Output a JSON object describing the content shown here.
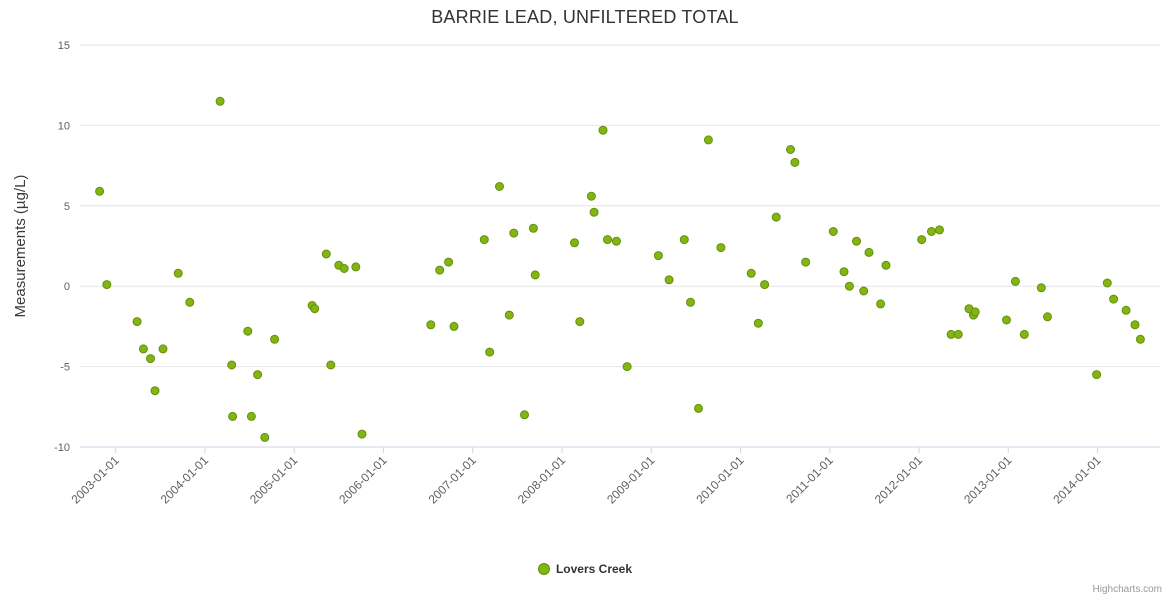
{
  "page": {
    "credits": "Highcharts.com"
  },
  "chart_data": {
    "type": "scatter",
    "title": "BARRIE LEAD, UNFILTERED TOTAL",
    "xlabel": "",
    "ylabel": "Measurements (µg/L)",
    "ylim": [
      -10,
      15
    ],
    "xlim": [
      2002.6,
      2014.7
    ],
    "grid": true,
    "legend_position": "bottom-center",
    "y_ticks": [
      15,
      10,
      5,
      0,
      -5,
      -10
    ],
    "x_ticks": [
      {
        "value": 2003,
        "label": "2003-01-01"
      },
      {
        "value": 2004,
        "label": "2004-01-01"
      },
      {
        "value": 2005,
        "label": "2005-01-01"
      },
      {
        "value": 2006,
        "label": "2006-01-01"
      },
      {
        "value": 2007,
        "label": "2007-01-01"
      },
      {
        "value": 2008,
        "label": "2008-01-01"
      },
      {
        "value": 2009,
        "label": "2009-01-01"
      },
      {
        "value": 2010,
        "label": "2010-01-01"
      },
      {
        "value": 2011,
        "label": "2011-01-01"
      },
      {
        "value": 2012,
        "label": "2012-01-01"
      },
      {
        "value": 2013,
        "label": "2013-01-01"
      },
      {
        "value": 2014,
        "label": "2014-01-01"
      }
    ],
    "colors": {
      "marker_fill": "#82b513",
      "marker_stroke": "#64900a",
      "grid": "#e6e6e6",
      "axis_line": "#ccd6eb",
      "tick": "#ccd6eb",
      "label": "#606060",
      "title": "#333333",
      "legend_text": "#333333",
      "credits": "#999999"
    },
    "series": [
      {
        "name": "Lovers Creek",
        "points": [
          [
            2002.82,
            5.9
          ],
          [
            2002.9,
            0.1
          ],
          [
            2003.24,
            -2.2
          ],
          [
            2003.31,
            -3.9
          ],
          [
            2003.39,
            -4.5
          ],
          [
            2003.44,
            -6.5
          ],
          [
            2003.53,
            -3.9
          ],
          [
            2003.7,
            0.8
          ],
          [
            2003.83,
            -1.0
          ],
          [
            2004.17,
            11.5
          ],
          [
            2004.3,
            -4.9
          ],
          [
            2004.31,
            -8.1
          ],
          [
            2004.48,
            -2.8
          ],
          [
            2004.52,
            -8.1
          ],
          [
            2004.59,
            -5.5
          ],
          [
            2004.67,
            -9.4
          ],
          [
            2004.78,
            -3.3
          ],
          [
            2005.2,
            -1.2
          ],
          [
            2005.23,
            -1.4
          ],
          [
            2005.36,
            2.0
          ],
          [
            2005.41,
            -4.9
          ],
          [
            2005.5,
            1.3
          ],
          [
            2005.56,
            1.1
          ],
          [
            2005.69,
            1.2
          ],
          [
            2005.76,
            -9.2
          ],
          [
            2006.53,
            -2.4
          ],
          [
            2006.63,
            1.0
          ],
          [
            2006.73,
            1.5
          ],
          [
            2006.79,
            -2.5
          ],
          [
            2007.13,
            2.9
          ],
          [
            2007.19,
            -4.1
          ],
          [
            2007.3,
            6.2
          ],
          [
            2007.41,
            -1.8
          ],
          [
            2007.46,
            3.3
          ],
          [
            2007.58,
            -8.0
          ],
          [
            2007.68,
            3.6
          ],
          [
            2007.7,
            0.7
          ],
          [
            2008.14,
            2.7
          ],
          [
            2008.2,
            -2.2
          ],
          [
            2008.33,
            5.6
          ],
          [
            2008.36,
            4.6
          ],
          [
            2008.46,
            9.7
          ],
          [
            2008.51,
            2.9
          ],
          [
            2008.61,
            2.8
          ],
          [
            2008.73,
            -5.0
          ],
          [
            2009.08,
            1.9
          ],
          [
            2009.2,
            0.4
          ],
          [
            2009.37,
            2.9
          ],
          [
            2009.44,
            -1.0
          ],
          [
            2009.53,
            -7.6
          ],
          [
            2009.64,
            9.1
          ],
          [
            2009.78,
            2.4
          ],
          [
            2010.12,
            0.8
          ],
          [
            2010.2,
            -2.3
          ],
          [
            2010.27,
            0.1
          ],
          [
            2010.4,
            4.3
          ],
          [
            2010.56,
            8.5
          ],
          [
            2010.61,
            7.7
          ],
          [
            2010.73,
            1.5
          ],
          [
            2011.04,
            3.4
          ],
          [
            2011.16,
            0.9
          ],
          [
            2011.22,
            0.0
          ],
          [
            2011.3,
            2.8
          ],
          [
            2011.38,
            -0.3
          ],
          [
            2011.44,
            2.1
          ],
          [
            2011.57,
            -1.1
          ],
          [
            2011.63,
            1.3
          ],
          [
            2012.03,
            2.9
          ],
          [
            2012.14,
            3.4
          ],
          [
            2012.23,
            3.5
          ],
          [
            2012.36,
            -3.0
          ],
          [
            2012.44,
            -3.0
          ],
          [
            2012.56,
            -1.4
          ],
          [
            2012.61,
            -1.8
          ],
          [
            2012.63,
            -1.6
          ],
          [
            2012.98,
            -2.1
          ],
          [
            2013.08,
            0.3
          ],
          [
            2013.18,
            -3.0
          ],
          [
            2013.37,
            -0.1
          ],
          [
            2013.44,
            -1.9
          ],
          [
            2013.99,
            -5.5
          ],
          [
            2014.11,
            0.2
          ],
          [
            2014.18,
            -0.8
          ],
          [
            2014.32,
            -1.5
          ],
          [
            2014.42,
            -2.4
          ],
          [
            2014.48,
            -3.3
          ]
        ]
      }
    ]
  }
}
